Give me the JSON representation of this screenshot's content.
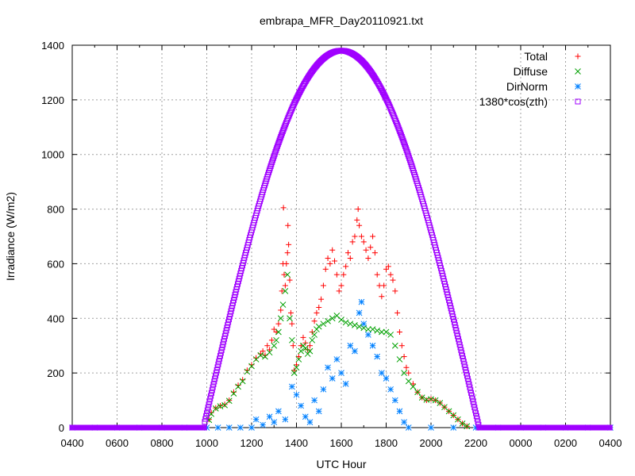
{
  "chart_data": {
    "type": "scatter",
    "title": "embrapa_MFR_Day20110921.txt",
    "xlabel": "UTC Hour",
    "ylabel": "Irradiance (W/m2)",
    "x_tick_labels": [
      "0400",
      "0600",
      "0800",
      "1000",
      "1200",
      "1400",
      "1600",
      "1800",
      "2000",
      "2200",
      "0000",
      "0200",
      "0400"
    ],
    "xlim": [
      4,
      28
    ],
    "ylim": [
      0,
      1400
    ],
    "y_ticks": [
      0,
      200,
      400,
      600,
      800,
      1000,
      1200,
      1400
    ],
    "grid": true,
    "legend_position": "top-right",
    "series": [
      {
        "name": "Total",
        "marker": "plus",
        "color": "#ff0000",
        "points": [
          [
            10.1,
            30
          ],
          [
            10.2,
            55
          ],
          [
            10.4,
            72
          ],
          [
            10.6,
            80
          ],
          [
            10.8,
            85
          ],
          [
            11.0,
            100
          ],
          [
            11.2,
            130
          ],
          [
            11.4,
            155
          ],
          [
            11.6,
            175
          ],
          [
            11.8,
            210
          ],
          [
            12.0,
            230
          ],
          [
            12.2,
            255
          ],
          [
            12.4,
            270
          ],
          [
            12.5,
            280
          ],
          [
            12.6,
            265
          ],
          [
            12.7,
            300
          ],
          [
            12.8,
            285
          ],
          [
            12.9,
            320
          ],
          [
            13.0,
            360
          ],
          [
            13.1,
            350
          ],
          [
            13.2,
            380
          ],
          [
            13.3,
            430
          ],
          [
            13.35,
            500
          ],
          [
            13.4,
            600
          ],
          [
            13.42,
            805
          ],
          [
            13.45,
            560
          ],
          [
            13.5,
            520
          ],
          [
            13.55,
            600
          ],
          [
            13.6,
            640
          ],
          [
            13.62,
            740
          ],
          [
            13.65,
            670
          ],
          [
            13.7,
            540
          ],
          [
            13.75,
            420
          ],
          [
            13.8,
            380
          ],
          [
            13.85,
            300
          ],
          [
            13.9,
            210
          ],
          [
            14.0,
            230
          ],
          [
            14.1,
            260
          ],
          [
            14.2,
            300
          ],
          [
            14.3,
            330
          ],
          [
            14.4,
            310
          ],
          [
            14.5,
            285
          ],
          [
            14.6,
            300
          ],
          [
            14.7,
            350
          ],
          [
            14.8,
            390
          ],
          [
            14.9,
            420
          ],
          [
            15.0,
            440
          ],
          [
            15.1,
            470
          ],
          [
            15.2,
            520
          ],
          [
            15.3,
            580
          ],
          [
            15.4,
            620
          ],
          [
            15.5,
            600
          ],
          [
            15.6,
            650
          ],
          [
            15.7,
            610
          ],
          [
            15.8,
            560
          ],
          [
            15.9,
            500
          ],
          [
            16.0,
            520
          ],
          [
            16.1,
            560
          ],
          [
            16.2,
            590
          ],
          [
            16.3,
            640
          ],
          [
            16.4,
            620
          ],
          [
            16.5,
            680
          ],
          [
            16.6,
            700
          ],
          [
            16.7,
            760
          ],
          [
            16.75,
            800
          ],
          [
            16.8,
            740
          ],
          [
            16.9,
            700
          ],
          [
            17.0,
            680
          ],
          [
            17.1,
            650
          ],
          [
            17.2,
            620
          ],
          [
            17.3,
            660
          ],
          [
            17.4,
            700
          ],
          [
            17.5,
            640
          ],
          [
            17.6,
            560
          ],
          [
            17.7,
            520
          ],
          [
            17.8,
            480
          ],
          [
            17.9,
            520
          ],
          [
            18.0,
            580
          ],
          [
            18.1,
            590
          ],
          [
            18.2,
            560
          ],
          [
            18.3,
            540
          ],
          [
            18.4,
            500
          ],
          [
            18.5,
            420
          ],
          [
            18.6,
            350
          ],
          [
            18.7,
            300
          ],
          [
            18.8,
            260
          ],
          [
            18.9,
            220
          ],
          [
            19.0,
            200
          ],
          [
            19.2,
            160
          ],
          [
            19.4,
            130
          ],
          [
            19.6,
            110
          ],
          [
            19.8,
            100
          ],
          [
            20.0,
            105
          ],
          [
            20.2,
            100
          ],
          [
            20.4,
            90
          ],
          [
            20.6,
            75
          ],
          [
            20.8,
            60
          ],
          [
            21.0,
            45
          ],
          [
            21.2,
            30
          ],
          [
            21.4,
            15
          ],
          [
            21.6,
            5
          ]
        ]
      },
      {
        "name": "Diffuse",
        "marker": "cross",
        "color": "#00a000",
        "points": [
          [
            10.1,
            28
          ],
          [
            10.2,
            50
          ],
          [
            10.4,
            70
          ],
          [
            10.6,
            78
          ],
          [
            10.8,
            82
          ],
          [
            11.0,
            98
          ],
          [
            11.2,
            125
          ],
          [
            11.4,
            150
          ],
          [
            11.6,
            170
          ],
          [
            11.8,
            205
          ],
          [
            12.0,
            225
          ],
          [
            12.2,
            250
          ],
          [
            12.4,
            265
          ],
          [
            12.6,
            260
          ],
          [
            12.8,
            275
          ],
          [
            13.0,
            300
          ],
          [
            13.1,
            320
          ],
          [
            13.2,
            350
          ],
          [
            13.3,
            400
          ],
          [
            13.4,
            450
          ],
          [
            13.5,
            500
          ],
          [
            13.6,
            560
          ],
          [
            13.7,
            400
          ],
          [
            13.8,
            320
          ],
          [
            13.9,
            200
          ],
          [
            14.0,
            220
          ],
          [
            14.1,
            250
          ],
          [
            14.2,
            280
          ],
          [
            14.3,
            300
          ],
          [
            14.4,
            290
          ],
          [
            14.5,
            270
          ],
          [
            14.6,
            280
          ],
          [
            14.7,
            320
          ],
          [
            14.8,
            340
          ],
          [
            14.9,
            360
          ],
          [
            15.0,
            370
          ],
          [
            15.2,
            380
          ],
          [
            15.4,
            390
          ],
          [
            15.6,
            400
          ],
          [
            15.8,
            410
          ],
          [
            16.0,
            395
          ],
          [
            16.2,
            385
          ],
          [
            16.4,
            380
          ],
          [
            16.6,
            375
          ],
          [
            16.8,
            370
          ],
          [
            17.0,
            365
          ],
          [
            17.2,
            360
          ],
          [
            17.4,
            360
          ],
          [
            17.6,
            355
          ],
          [
            17.8,
            350
          ],
          [
            18.0,
            350
          ],
          [
            18.2,
            340
          ],
          [
            18.4,
            300
          ],
          [
            18.6,
            250
          ],
          [
            18.8,
            200
          ],
          [
            19.0,
            170
          ],
          [
            19.2,
            150
          ],
          [
            19.4,
            130
          ],
          [
            19.6,
            110
          ],
          [
            19.8,
            102
          ],
          [
            20.0,
            104
          ],
          [
            20.2,
            100
          ],
          [
            20.4,
            90
          ],
          [
            20.6,
            75
          ],
          [
            20.8,
            60
          ],
          [
            21.0,
            45
          ],
          [
            21.2,
            30
          ],
          [
            21.4,
            15
          ],
          [
            21.6,
            5
          ]
        ]
      },
      {
        "name": "DirNorm",
        "marker": "star",
        "color": "#0080ff",
        "points": [
          [
            4.0,
            0
          ],
          [
            5.0,
            0
          ],
          [
            6.0,
            0
          ],
          [
            7.0,
            0
          ],
          [
            8.0,
            0
          ],
          [
            9.0,
            0
          ],
          [
            10.0,
            0
          ],
          [
            10.5,
            0
          ],
          [
            11.0,
            0
          ],
          [
            11.5,
            0
          ],
          [
            12.0,
            0
          ],
          [
            12.2,
            30
          ],
          [
            12.5,
            10
          ],
          [
            12.8,
            40
          ],
          [
            13.0,
            20
          ],
          [
            13.2,
            60
          ],
          [
            13.5,
            30
          ],
          [
            13.8,
            150
          ],
          [
            14.0,
            120
          ],
          [
            14.2,
            80
          ],
          [
            14.4,
            40
          ],
          [
            14.6,
            20
          ],
          [
            14.8,
            100
          ],
          [
            15.0,
            60
          ],
          [
            15.2,
            140
          ],
          [
            15.4,
            220
          ],
          [
            15.6,
            180
          ],
          [
            15.8,
            250
          ],
          [
            16.0,
            200
          ],
          [
            16.2,
            160
          ],
          [
            16.4,
            300
          ],
          [
            16.6,
            280
          ],
          [
            16.8,
            420
          ],
          [
            16.9,
            460
          ],
          [
            17.0,
            380
          ],
          [
            17.2,
            340
          ],
          [
            17.4,
            300
          ],
          [
            17.6,
            260
          ],
          [
            17.8,
            200
          ],
          [
            18.0,
            180
          ],
          [
            18.2,
            140
          ],
          [
            18.4,
            100
          ],
          [
            18.6,
            60
          ],
          [
            18.8,
            20
          ],
          [
            19.0,
            0
          ],
          [
            20.0,
            0
          ],
          [
            21.0,
            0
          ],
          [
            22.0,
            0
          ],
          [
            23.0,
            0
          ],
          [
            24.0,
            0
          ],
          [
            25.0,
            0
          ],
          [
            26.0,
            0
          ],
          [
            27.0,
            0
          ],
          [
            28.0,
            0
          ]
        ]
      },
      {
        "name": "1380*cos(zth)",
        "marker": "square",
        "color": "#a000ff",
        "function": {
          "peak": 1380,
          "center": 16.0,
          "rise": 9.9,
          "set": 22.2
        }
      }
    ]
  }
}
